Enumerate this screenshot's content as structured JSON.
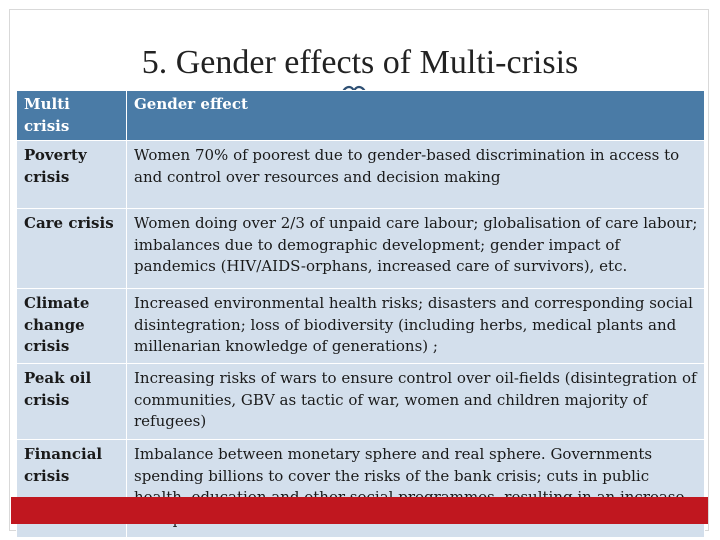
{
  "slide": {
    "title": "5. Gender effects of Multi-crisis"
  },
  "table": {
    "headers": [
      "Multi crisis",
      "Gender effect"
    ],
    "rows": [
      {
        "crisis": "Poverty crisis",
        "effect": "Women 70% of poorest due to gender-based discrimination in access to and control over resources and decision making"
      },
      {
        "crisis": "Care crisis",
        "effect": "Women doing over 2/3 of unpaid care labour; globalisation of care labour; imbalances due to demographic development; gender impact of pandemics  (HIV/AIDS-orphans, increased care of survivors), etc."
      },
      {
        "crisis": "Climate change crisis",
        "effect": "Increased environmental health risks; disasters and corresponding social disintegration; loss of biodiversity (including herbs, medical plants and millenarian knowledge of generations) ;"
      },
      {
        "crisis": "Peak oil crisis",
        "effect": "Increasing risks of wars to ensure control over oil-fields (disintegration of communities, GBV as tactic of war, women and children majority of refugees)"
      },
      {
        "crisis": "Financial crisis",
        "effect": "Imbalance between monetary sphere and real sphere. Governments spending billions to cover the risks of the bank crisis; cuts in public health, education and other social programmes, resulting in an increase of unpaid care sector"
      }
    ]
  },
  "colors": {
    "header_bg": "#4a7ba6",
    "cell_bg": "#d3dfec",
    "accent": "#c0171f"
  },
  "icons": {
    "ornament": "scroll-ornament-icon"
  }
}
